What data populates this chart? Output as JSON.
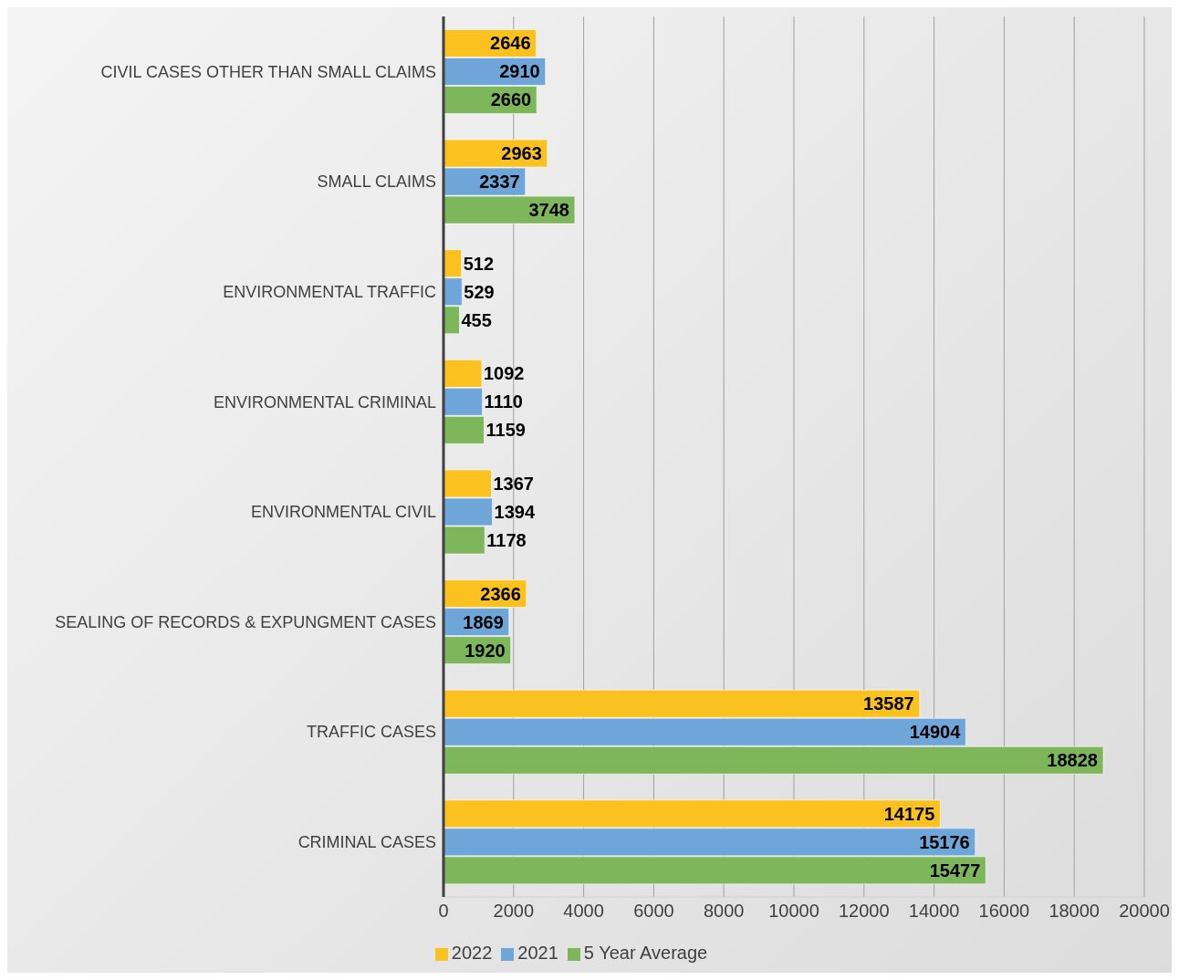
{
  "chart_data": {
    "type": "bar",
    "orientation": "horizontal",
    "categories": [
      "CIVIL CASES OTHER THAN SMALL CLAIMS",
      "SMALL CLAIMS",
      "ENVIRONMENTAL TRAFFIC",
      "ENVIRONMENTAL CRIMINAL",
      "ENVIRONMENTAL CIVIL",
      "SEALING OF RECORDS & EXPUNGMENT CASES",
      "TRAFFIC CASES",
      "CRIMINAL CASES"
    ],
    "series": [
      {
        "name": "2022",
        "color": "#fbc11e",
        "values": [
          2646,
          2963,
          512,
          1092,
          1367,
          2366,
          13587,
          14175
        ]
      },
      {
        "name": "2021",
        "color": "#6fa6d9",
        "values": [
          2910,
          2337,
          529,
          1110,
          1394,
          1869,
          14904,
          15176
        ]
      },
      {
        "name": "5 Year Average",
        "color": "#7db65b",
        "values": [
          2660,
          3748,
          455,
          1159,
          1178,
          1920,
          18828,
          15477
        ]
      }
    ],
    "xlim": [
      0,
      20000
    ],
    "xticks": [
      0,
      2000,
      4000,
      6000,
      8000,
      10000,
      12000,
      14000,
      16000,
      18000,
      20000
    ],
    "grid": "x",
    "legend": "bottom",
    "data_labels": true
  }
}
